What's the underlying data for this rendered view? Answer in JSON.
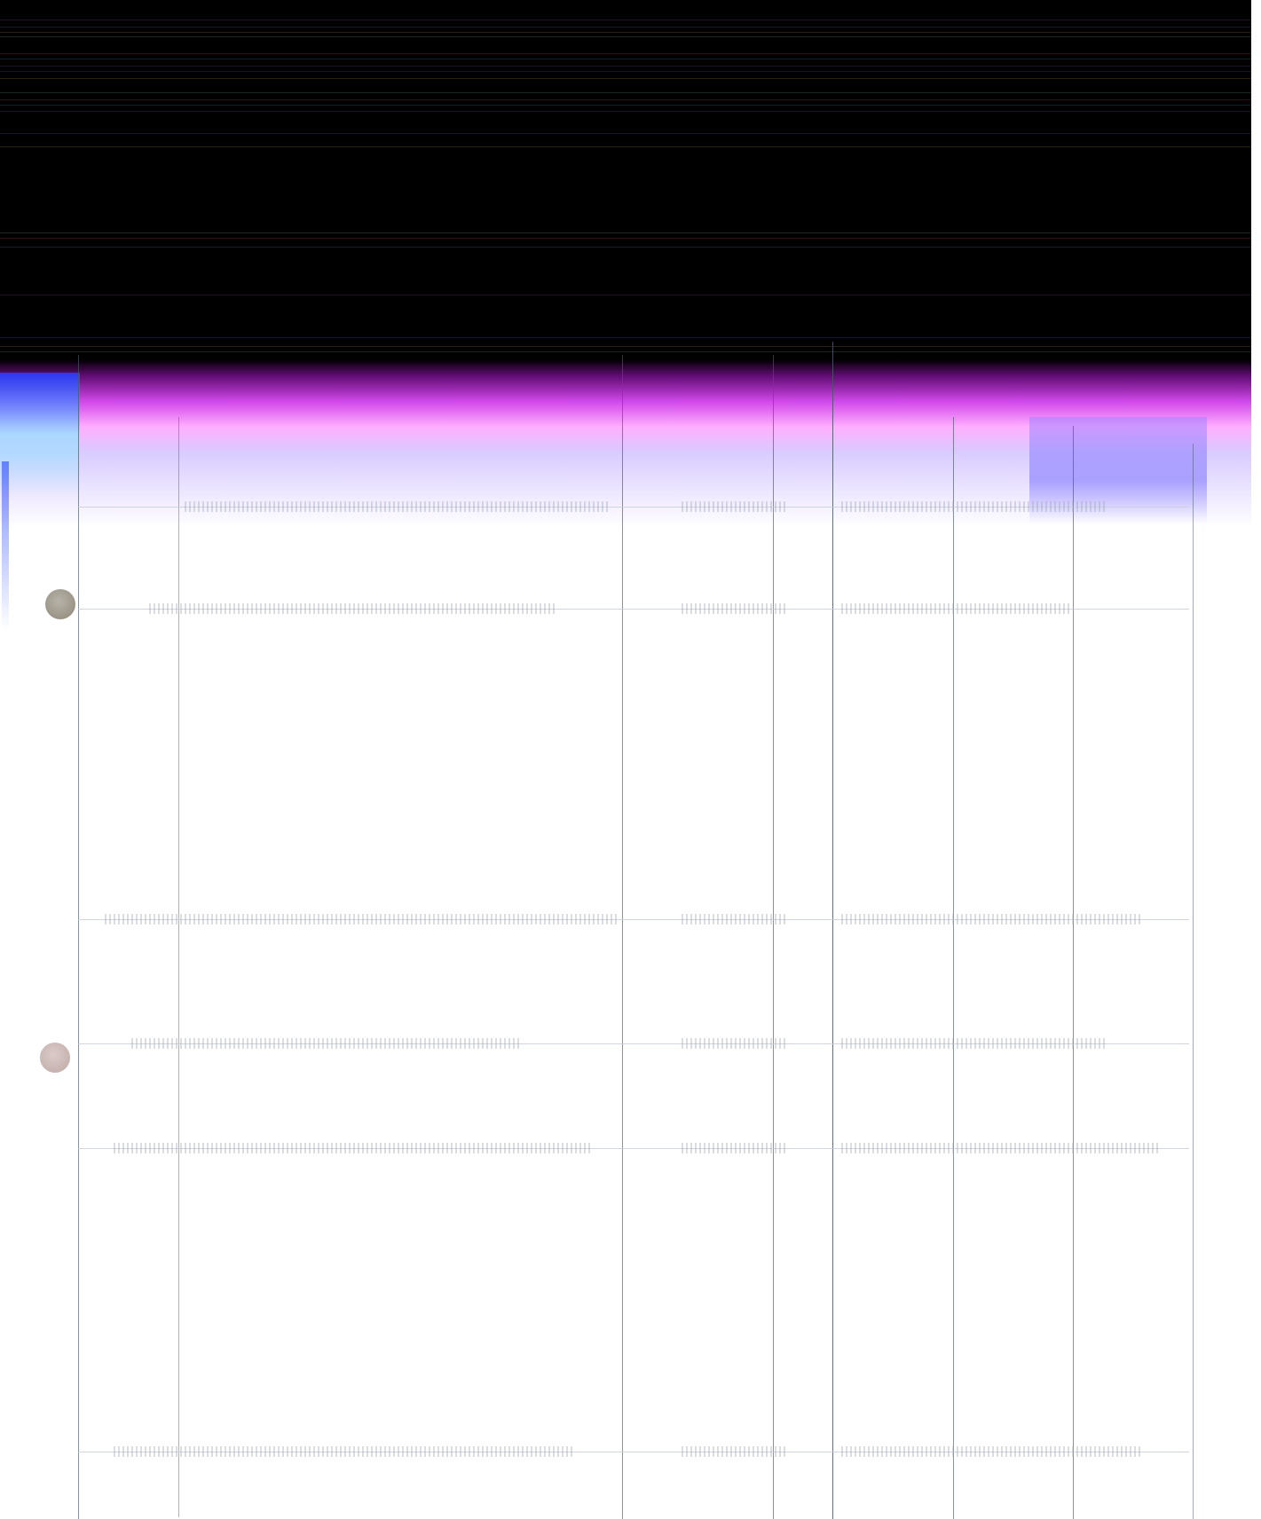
{
  "screen": {
    "status": "",
    "colors": {
      "top_band": "#000000",
      "glitch_magenta": "#e040ff",
      "glitch_blue": "#3c5aff",
      "grid_line": "#4b5666",
      "row_text": "#b7c0cb",
      "avatar_1": "#9a9486",
      "avatar_2": "#c8b8b6"
    }
  },
  "rows": [
    {
      "cells": [
        "",
        "",
        "",
        "",
        "",
        ""
      ]
    },
    {
      "cells": [
        "",
        "",
        "",
        "",
        "",
        ""
      ]
    },
    {
      "cells": [
        "",
        "",
        "",
        "",
        "",
        ""
      ]
    },
    {
      "cells": [
        "",
        "",
        "",
        "",
        "",
        ""
      ]
    },
    {
      "cells": [
        "",
        "",
        "",
        "",
        "",
        ""
      ]
    },
    {
      "cells": [
        "",
        "",
        "",
        "",
        "",
        ""
      ]
    }
  ]
}
